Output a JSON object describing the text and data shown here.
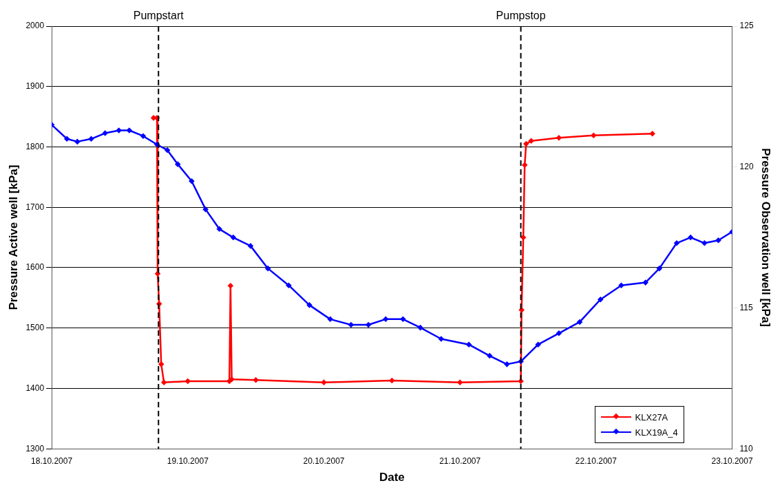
{
  "chart_data": {
    "type": "line",
    "xlabel": "Date",
    "ylabel": "Pressure Active well [kPa]",
    "y2label": "Pressure Observation well [kPa]",
    "xlim": [
      "2007-10-18",
      "2007-10-23"
    ],
    "xticks": [
      {
        "value": "2007-10-18",
        "label": "18.10.2007"
      },
      {
        "value": "2007-10-19",
        "label": "19.10.2007"
      },
      {
        "value": "2007-10-20",
        "label": "20.10.2007"
      },
      {
        "value": "2007-10-21",
        "label": "21.10.2007"
      },
      {
        "value": "2007-10-22",
        "label": "22.10.2007"
      },
      {
        "value": "2007-10-23",
        "label": "23.10.2007"
      }
    ],
    "ylim": [
      1300,
      2000
    ],
    "yticks": [
      1300,
      1400,
      1500,
      1600,
      1700,
      1800,
      1900,
      2000
    ],
    "y2lim": [
      110,
      125
    ],
    "y2ticks": [
      110,
      115,
      120,
      125
    ],
    "grid": "y",
    "legend": "bottom right",
    "marker": "diamond",
    "series": [
      {
        "name": "KLX27A",
        "color": "#ff0000",
        "axis": "y",
        "x": [
          "2007-10-18T17:58",
          "2007-10-18T18:34",
          "2007-10-18T18:41",
          "2007-10-18T18:57",
          "2007-10-18T19:19",
          "2007-10-18T19:48",
          "2007-10-19T00:00",
          "2007-10-19T07:20",
          "2007-10-19T07:32",
          "2007-10-19T07:45",
          "2007-10-19T12:00",
          "2007-10-20T00:00",
          "2007-10-20T12:00",
          "2007-10-21T00:00",
          "2007-10-21T10:44",
          "2007-10-21T10:52",
          "2007-10-21T11:10",
          "2007-10-21T11:25",
          "2007-10-21T11:40",
          "2007-10-21T12:34",
          "2007-10-21T17:27",
          "2007-10-21T23:34",
          "2007-10-22T09:56"
        ],
        "values": [
          1848,
          1848,
          1590,
          1540,
          1440,
          1410,
          1412,
          1412,
          1570,
          1415,
          1414,
          1410,
          1413,
          1410,
          1412,
          1530,
          1650,
          1770,
          1805,
          1810,
          1815,
          1819,
          1822
        ]
      },
      {
        "name": "KLX19A_4",
        "color": "#0000ff",
        "axis": "y2",
        "x": [
          "2007-10-18T00:00",
          "2007-10-18T02:41",
          "2007-10-18T04:31",
          "2007-10-18T06:58",
          "2007-10-18T09:25",
          "2007-10-18T11:51",
          "2007-10-18T13:41",
          "2007-10-18T16:08",
          "2007-10-18T18:34",
          "2007-10-18T20:24",
          "2007-10-18T22:14",
          "2007-10-19T00:41",
          "2007-10-19T03:08",
          "2007-10-19T05:34",
          "2007-10-19T08:01",
          "2007-10-19T11:04",
          "2007-10-19T14:08",
          "2007-10-19T17:48",
          "2007-10-19T21:27",
          "2007-10-20T01:07",
          "2007-10-20T04:47",
          "2007-10-20T07:51",
          "2007-10-20T10:54",
          "2007-10-20T13:57",
          "2007-10-20T17:01",
          "2007-10-20T20:41",
          "2007-10-21T01:34",
          "2007-10-21T05:14",
          "2007-10-21T08:17",
          "2007-10-21T10:44",
          "2007-10-21T13:47",
          "2007-10-21T17:27",
          "2007-10-21T21:07",
          "2007-10-22T00:47",
          "2007-10-22T04:27",
          "2007-10-22T08:43",
          "2007-10-22T11:10",
          "2007-10-22T14:13",
          "2007-10-22T16:40",
          "2007-10-22T19:07",
          "2007-10-22T21:34",
          "2007-10-23T00:00"
        ],
        "values": [
          121.5,
          121.0,
          120.9,
          121.0,
          121.2,
          121.3,
          121.3,
          121.1,
          120.8,
          120.6,
          120.1,
          119.5,
          118.5,
          117.8,
          117.5,
          117.2,
          116.4,
          115.8,
          115.1,
          114.6,
          114.4,
          114.4,
          114.6,
          114.6,
          114.3,
          113.9,
          113.7,
          113.3,
          113.0,
          113.1,
          113.7,
          114.1,
          114.5,
          115.3,
          115.8,
          115.9,
          116.4,
          117.3,
          117.5,
          117.3,
          117.4,
          117.7
        ]
      }
    ],
    "ref_lines": [
      {
        "axis": "x",
        "value": "2007-10-18T18:50",
        "label": "Pumpstart",
        "color": "#000000",
        "line_style": "dashed"
      },
      {
        "axis": "x",
        "value": "2007-10-21T10:44",
        "label": "Pumpstop",
        "color": "#000000",
        "line_style": "dashed"
      }
    ]
  }
}
